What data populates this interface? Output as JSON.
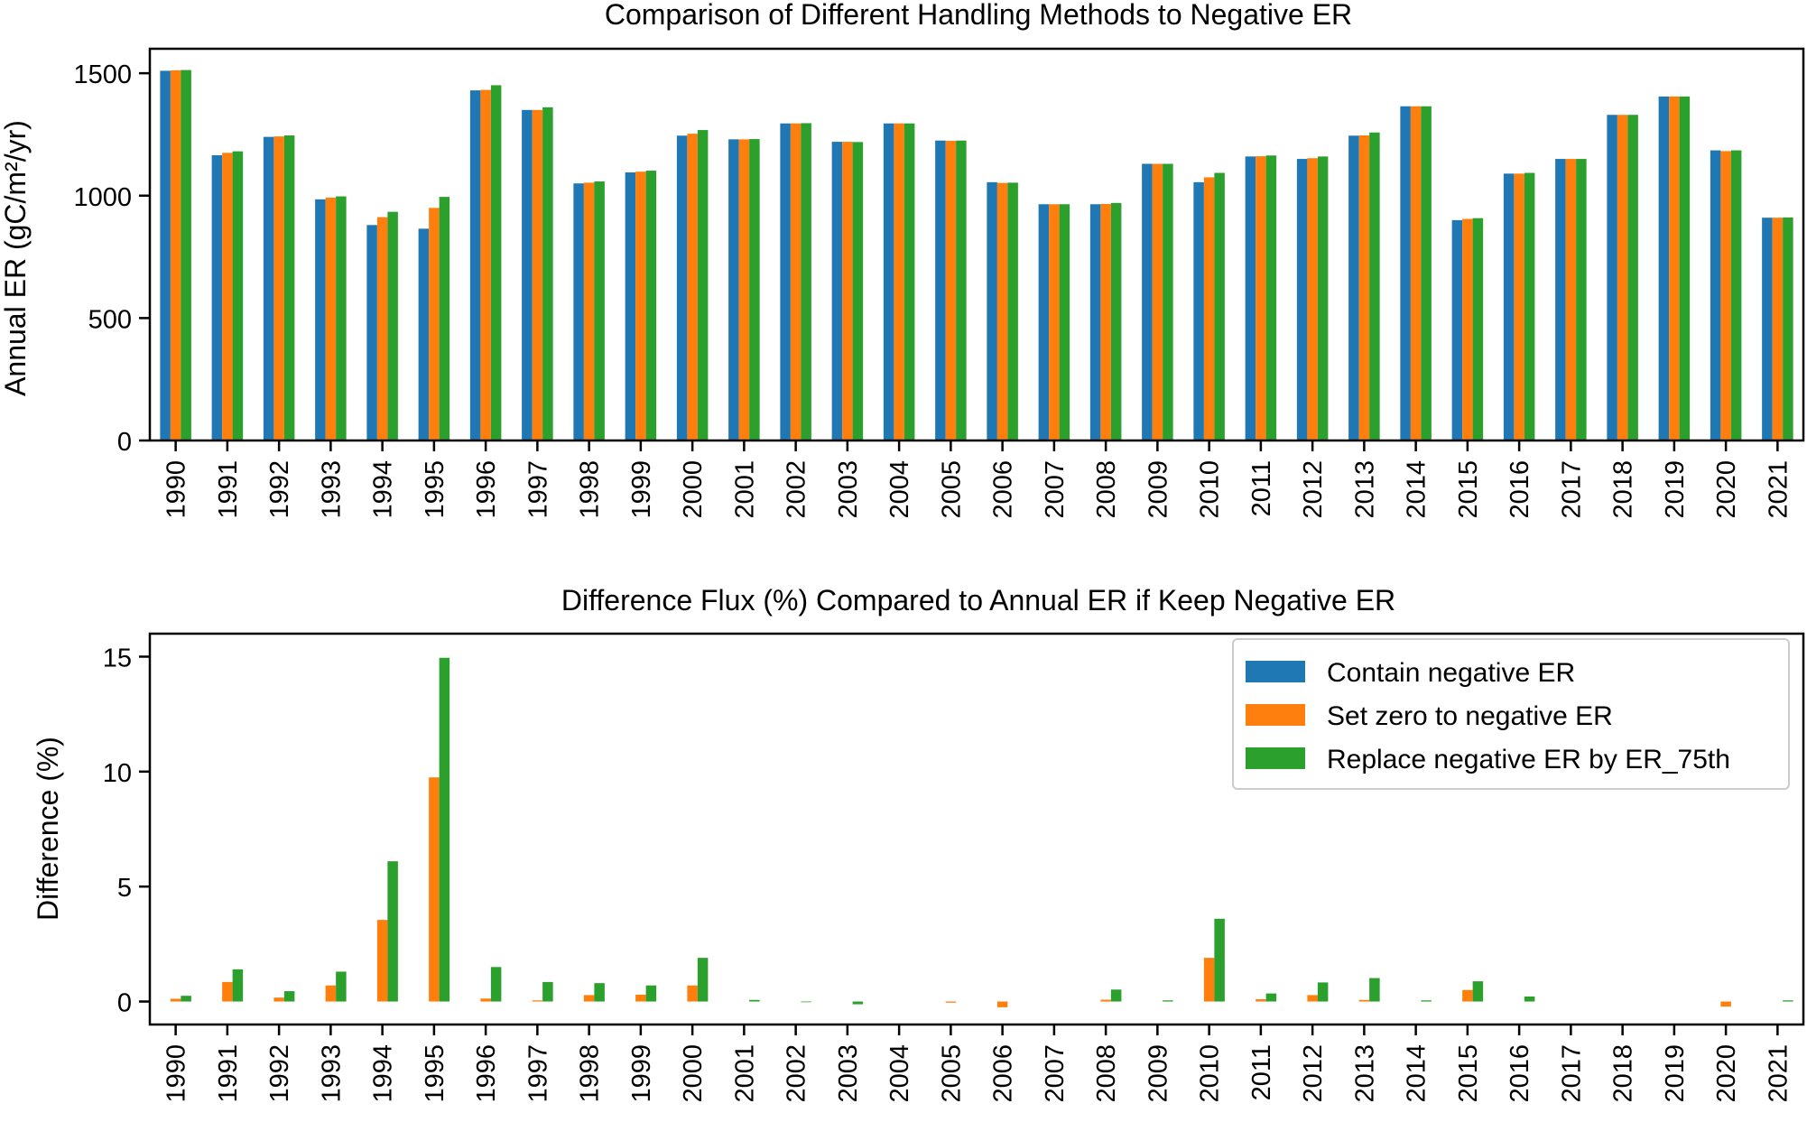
{
  "colors": {
    "contain": "#1f77b4",
    "zero": "#ff7f0e",
    "replace": "#2ca02c"
  },
  "chart_data": [
    {
      "type": "bar",
      "title": "Comparison of Different Handling Methods to Negative ER",
      "xlabel": "",
      "ylabel": "Annual ER  (gC/m²/yr)",
      "ylim": [
        0,
        1600
      ],
      "yticks": [
        0,
        500,
        1000,
        1500
      ],
      "grid": false,
      "categories": [
        "1990",
        "1991",
        "1992",
        "1993",
        "1994",
        "1995",
        "1996",
        "1997",
        "1998",
        "1999",
        "2000",
        "2001",
        "2002",
        "2003",
        "2004",
        "2005",
        "2006",
        "2007",
        "2008",
        "2009",
        "2010",
        "2011",
        "2012",
        "2013",
        "2014",
        "2015",
        "2016",
        "2017",
        "2018",
        "2019",
        "2020",
        "2021"
      ],
      "series": [
        {
          "name": "Contain negative ER",
          "color_key": "contain",
          "values": [
            1510,
            1165,
            1240,
            985,
            880,
            865,
            1430,
            1350,
            1050,
            1095,
            1245,
            1230,
            1295,
            1220,
            1295,
            1225,
            1055,
            965,
            965,
            1130,
            1055,
            1160,
            1150,
            1245,
            1365,
            900,
            1090,
            1150,
            1330,
            1405,
            1185,
            910
          ]
        },
        {
          "name": "Set zero to negative ER",
          "color_key": "zero",
          "values": [
            1512,
            1175,
            1242,
            992,
            912,
            950,
            1432,
            1350,
            1053,
            1098,
            1253,
            1230,
            1295,
            1220,
            1295,
            1224,
            1052,
            965,
            966,
            1130,
            1075,
            1161,
            1153,
            1246,
            1365,
            905,
            1090,
            1150,
            1330,
            1405,
            1182,
            910
          ]
        },
        {
          "name": "Replace negative ER by ER_75th",
          "color_key": "replace",
          "values": [
            1513,
            1181,
            1246,
            997,
            934,
            995,
            1451,
            1361,
            1058,
            1102,
            1268,
            1231,
            1296,
            1219,
            1295,
            1225,
            1053,
            965,
            970,
            1130,
            1093,
            1164,
            1160,
            1258,
            1365,
            908,
            1093,
            1150,
            1330,
            1405,
            1185,
            911
          ]
        }
      ]
    },
    {
      "type": "bar",
      "title": "Difference Flux (%) Compared to Annual ER if Keep Negative ER",
      "xlabel": "",
      "ylabel": "Difference (%)",
      "ylim": [
        -1.0,
        16.0
      ],
      "yticks": [
        0,
        5,
        10,
        15
      ],
      "grid": false,
      "legend": "top-right",
      "categories": [
        "1990",
        "1991",
        "1992",
        "1993",
        "1994",
        "1995",
        "1996",
        "1997",
        "1998",
        "1999",
        "2000",
        "2001",
        "2002",
        "2003",
        "2004",
        "2005",
        "2006",
        "2007",
        "2008",
        "2009",
        "2010",
        "2011",
        "2012",
        "2013",
        "2014",
        "2015",
        "2016",
        "2017",
        "2018",
        "2019",
        "2020",
        "2021"
      ],
      "series": [
        {
          "name": "Contain negative ER",
          "color_key": "contain",
          "values": [
            0,
            0,
            0,
            0,
            0,
            0,
            0,
            0,
            0,
            0,
            0,
            0,
            0,
            0,
            0,
            0,
            0,
            0,
            0,
            0,
            0,
            0,
            0,
            0,
            0,
            0,
            0,
            0,
            0,
            0,
            0,
            0
          ]
        },
        {
          "name": "Set zero to negative ER",
          "color_key": "zero",
          "values": [
            0.12,
            0.85,
            0.17,
            0.7,
            3.55,
            9.75,
            0.13,
            0.05,
            0.28,
            0.3,
            0.7,
            0,
            0,
            0,
            0,
            -0.05,
            -0.25,
            0,
            0.08,
            0,
            1.9,
            0.1,
            0.28,
            0.07,
            0,
            0.5,
            0,
            0,
            0,
            0,
            -0.22,
            0
          ]
        },
        {
          "name": "Replace negative ER by ER_75th",
          "color_key": "replace",
          "values": [
            0.25,
            1.4,
            0.45,
            1.3,
            6.1,
            14.95,
            1.5,
            0.85,
            0.8,
            0.7,
            1.9,
            0.07,
            -0.03,
            -0.12,
            0,
            0,
            0,
            0,
            0.52,
            0.05,
            3.6,
            0.35,
            0.83,
            1.02,
            0.05,
            0.88,
            0.22,
            0,
            0,
            0,
            0,
            0.05
          ]
        }
      ]
    }
  ]
}
